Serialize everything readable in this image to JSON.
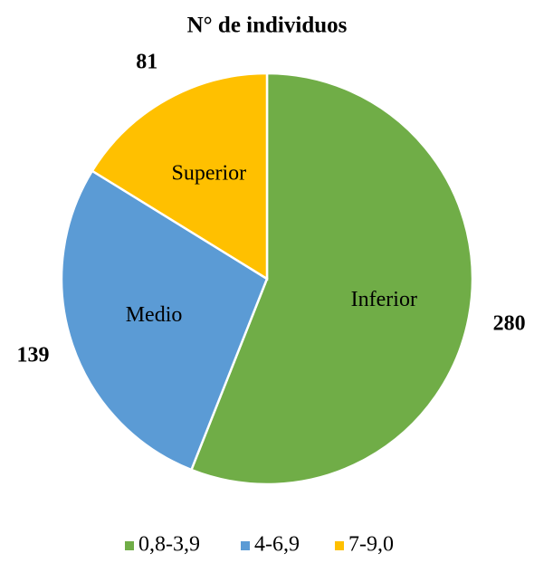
{
  "chart_data": {
    "type": "pie",
    "title": "N° de individuos",
    "categories": [
      "0,8-3,9",
      "4-6,9",
      "7-9,0"
    ],
    "labels": [
      "Inferior",
      "Medio",
      "Superior"
    ],
    "values": [
      280,
      139,
      81
    ],
    "colors": [
      "#70ad47",
      "#5b9bd5",
      "#ffc000"
    ],
    "legend": "bottom"
  }
}
